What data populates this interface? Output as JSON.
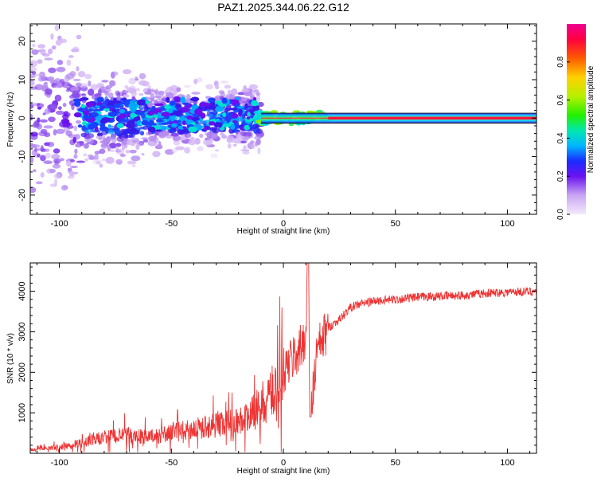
{
  "chart_data": [
    {
      "type": "heatmap",
      "title": "PAZ1.2025.344.06.22.G12",
      "xlabel": "Height of straight line (km)",
      "ylabel": "Frequency (Hz)",
      "xlim": [
        -113,
        113
      ],
      "ylim": [
        -25,
        24.5
      ],
      "xticks": [
        "-100",
        "-50",
        "0",
        "50",
        "100"
      ],
      "xtick_values": [
        -100,
        -50,
        0,
        50,
        100
      ],
      "yticks": [
        "-20",
        "-10",
        "0",
        "10",
        "20"
      ],
      "ytick_values": [
        -20,
        -10,
        0,
        10,
        20
      ],
      "colorbar": {
        "label": "Normalized spectral amplitude",
        "range": [
          0,
          1
        ],
        "ticks": [
          "0.0",
          "0.2",
          "0.4",
          "0.6",
          "0.8"
        ],
        "tick_values": [
          0.0,
          0.2,
          0.4,
          0.6,
          0.8
        ]
      },
      "description_points": {
        "ridge_center_hz": 0,
        "strong_line_start_km": 20,
        "noise_region_km": [
          -113,
          -15
        ]
      }
    },
    {
      "type": "line",
      "xlabel": "Height of straight line (km)",
      "ylabel": "SNR (10 * v/v)",
      "xlim": [
        -113,
        113
      ],
      "ylim": [
        0,
        4700
      ],
      "xticks": [
        "-100",
        "-50",
        "0",
        "50",
        "100"
      ],
      "xtick_values": [
        -100,
        -50,
        0,
        50,
        100
      ],
      "yticks": [
        "1000",
        "2000",
        "3000",
        "4000"
      ],
      "ytick_values": [
        1000,
        2000,
        3000,
        4000
      ],
      "series": [
        {
          "name": "SNR",
          "color": "#ee3333",
          "x": [
            -113,
            -100,
            -90,
            -80,
            -70,
            -60,
            -50,
            -40,
            -30,
            -20,
            -15,
            -10,
            -5,
            0,
            5,
            8,
            10,
            11,
            12,
            15,
            20,
            25,
            30,
            35,
            40,
            50,
            60,
            70,
            80,
            90,
            100,
            113
          ],
          "y": [
            100,
            150,
            250,
            400,
            450,
            400,
            500,
            600,
            700,
            800,
            900,
            1200,
            1500,
            2000,
            2400,
            2600,
            3000,
            4700,
            900,
            2500,
            3100,
            3300,
            3600,
            3700,
            3750,
            3800,
            3850,
            3880,
            3900,
            3950,
            3980,
            4000
          ]
        }
      ]
    }
  ]
}
